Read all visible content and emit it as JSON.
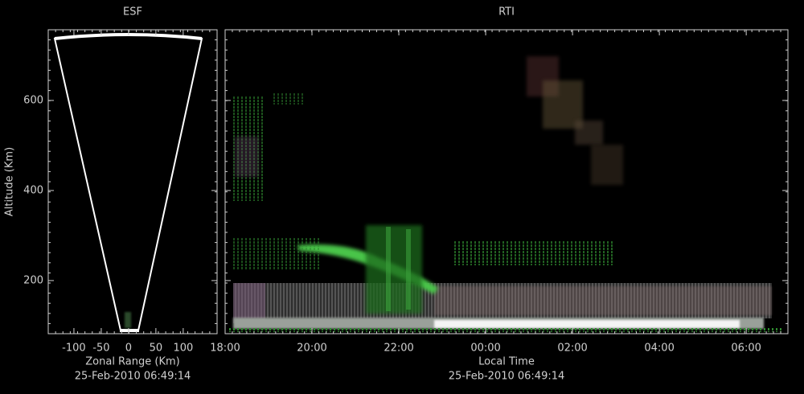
{
  "chart_data": [
    {
      "type": "fan",
      "title": "ESF",
      "xlabel": "Zonal Range (Km)",
      "ylabel": "Altitude (Km)",
      "subtitle": "25-Feb-2010 06:49:14",
      "xlim": [
        -147,
        162
      ],
      "xticks": [
        -100,
        -50,
        0,
        50,
        100
      ],
      "ylim": [
        82,
        757
      ],
      "yticks": [
        200,
        400,
        600
      ]
    },
    {
      "type": "rti",
      "title": "RTI",
      "xlabel": "Local Time",
      "subtitle": "25-Feb-2010 06:49:14",
      "xlim": [
        18,
        30.96
      ],
      "xticks": [
        {
          "value": 18,
          "label": "18:00"
        },
        {
          "value": 20,
          "label": "20:00"
        },
        {
          "value": 22,
          "label": "22:00"
        },
        {
          "value": 24,
          "label": "00:00"
        },
        {
          "value": 26,
          "label": "02:00"
        },
        {
          "value": 28,
          "label": "04:00"
        },
        {
          "value": 30,
          "label": "06:00"
        }
      ],
      "ylim": [
        82,
        757
      ],
      "yticks": [
        200,
        400,
        600
      ]
    }
  ]
}
